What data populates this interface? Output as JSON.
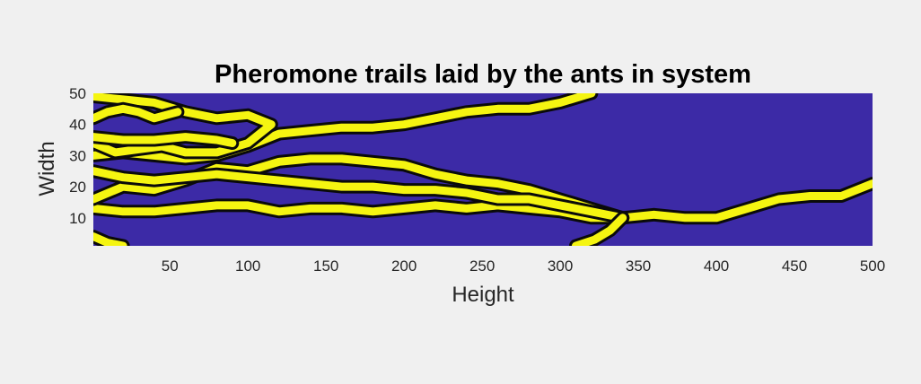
{
  "chart_data": {
    "type": "heatmap",
    "title": "Pheromone trails laid by the ants in system",
    "xlabel": "Height",
    "ylabel": "Width",
    "xlim": [
      1,
      500
    ],
    "ylim": [
      1,
      50
    ],
    "xticks": [
      50,
      100,
      150,
      200,
      250,
      300,
      350,
      400,
      450,
      500
    ],
    "yticks": [
      10,
      20,
      30,
      40,
      50
    ],
    "grid": false,
    "colors": {
      "background": "#3c2aa6",
      "trail": "#f5f511",
      "trail_edge": "#0a0a0a",
      "figure_bg": "#f0f0f0"
    },
    "trails": [
      {
        "points": [
          [
            1,
            13
          ],
          [
            20,
            12
          ],
          [
            40,
            12
          ],
          [
            60,
            13
          ],
          [
            80,
            14
          ],
          [
            100,
            14
          ],
          [
            120,
            12
          ],
          [
            140,
            13
          ],
          [
            160,
            13
          ],
          [
            180,
            12
          ],
          [
            200,
            13
          ],
          [
            220,
            14
          ],
          [
            240,
            13
          ],
          [
            260,
            14
          ],
          [
            280,
            13
          ],
          [
            300,
            12
          ],
          [
            320,
            10
          ],
          [
            340,
            10
          ],
          [
            360,
            11
          ],
          [
            380,
            10
          ],
          [
            400,
            10
          ],
          [
            420,
            13
          ],
          [
            440,
            16
          ],
          [
            460,
            17
          ],
          [
            480,
            17
          ],
          [
            500,
            21
          ]
        ]
      },
      {
        "points": [
          [
            1,
            16
          ],
          [
            20,
            20
          ],
          [
            40,
            19
          ],
          [
            60,
            22
          ],
          [
            80,
            26
          ],
          [
            100,
            25
          ],
          [
            120,
            28
          ],
          [
            140,
            29
          ],
          [
            160,
            29
          ],
          [
            180,
            28
          ],
          [
            200,
            27
          ],
          [
            220,
            24
          ],
          [
            240,
            22
          ],
          [
            260,
            21
          ],
          [
            280,
            19
          ],
          [
            300,
            16
          ],
          [
            320,
            13
          ],
          [
            340,
            10
          ]
        ]
      },
      {
        "points": [
          [
            1,
            25
          ],
          [
            20,
            23
          ],
          [
            40,
            22
          ],
          [
            60,
            23
          ],
          [
            80,
            24
          ],
          [
            100,
            23
          ],
          [
            120,
            22
          ],
          [
            140,
            21
          ],
          [
            160,
            20
          ],
          [
            180,
            20
          ],
          [
            200,
            19
          ],
          [
            220,
            19
          ],
          [
            240,
            18
          ],
          [
            260,
            16
          ],
          [
            280,
            16
          ],
          [
            300,
            14
          ],
          [
            320,
            12
          ],
          [
            340,
            10
          ]
        ]
      },
      {
        "points": [
          [
            1,
            30
          ],
          [
            20,
            31
          ],
          [
            40,
            30
          ],
          [
            60,
            29
          ],
          [
            80,
            30
          ],
          [
            100,
            33
          ],
          [
            120,
            37
          ],
          [
            140,
            38
          ],
          [
            160,
            39
          ],
          [
            180,
            39
          ],
          [
            200,
            40
          ],
          [
            220,
            42
          ],
          [
            240,
            44
          ],
          [
            260,
            45
          ],
          [
            280,
            45
          ],
          [
            300,
            47
          ],
          [
            320,
            50
          ]
        ]
      },
      {
        "points": [
          [
            1,
            34
          ],
          [
            15,
            31
          ],
          [
            30,
            32
          ],
          [
            45,
            33
          ],
          [
            60,
            31
          ],
          [
            80,
            31
          ],
          [
            100,
            34
          ],
          [
            115,
            40
          ],
          [
            100,
            43
          ],
          [
            80,
            42
          ],
          [
            60,
            44
          ],
          [
            40,
            47
          ],
          [
            20,
            48
          ],
          [
            1,
            49
          ]
        ]
      },
      {
        "points": [
          [
            1,
            36
          ],
          [
            20,
            35
          ],
          [
            40,
            35
          ],
          [
            60,
            36
          ],
          [
            80,
            35
          ],
          [
            90,
            34
          ]
        ]
      },
      {
        "points": [
          [
            1,
            42
          ],
          [
            10,
            44
          ],
          [
            20,
            45
          ],
          [
            30,
            44
          ],
          [
            40,
            42
          ],
          [
            55,
            44
          ]
        ]
      },
      {
        "points": [
          [
            340,
            10
          ],
          [
            332,
            6
          ],
          [
            322,
            3
          ],
          [
            310,
            1
          ]
        ]
      },
      {
        "points": [
          [
            1,
            4
          ],
          [
            10,
            2
          ],
          [
            20,
            1
          ]
        ]
      }
    ]
  }
}
